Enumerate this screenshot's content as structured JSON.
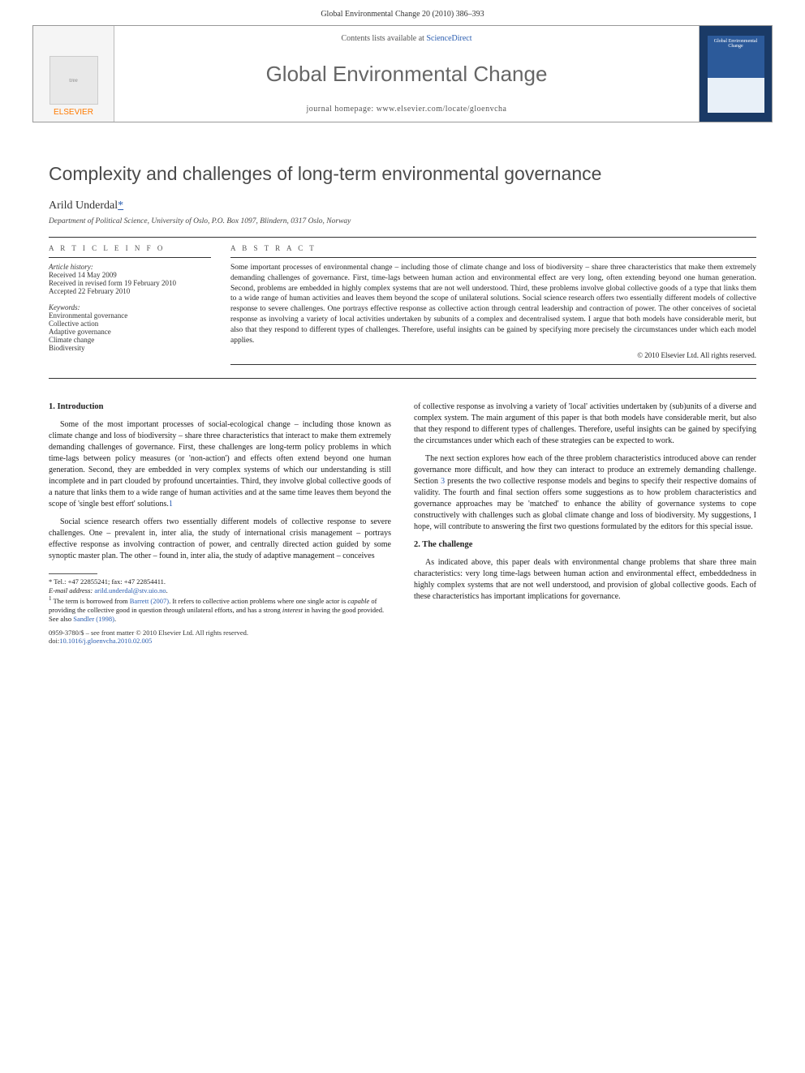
{
  "header": {
    "running": "Global Environmental Change 20 (2010) 386–393"
  },
  "banner": {
    "contents_prefix": "Contents lists available at ",
    "contents_link": "ScienceDirect",
    "journal": "Global Environmental Change",
    "homepage_prefix": "journal homepage: ",
    "homepage_url": "www.elsevier.com/locate/gloenvcha",
    "publisher": "ELSEVIER",
    "thumb_label": "Global Environmental Change"
  },
  "article": {
    "title": "Complexity and challenges of long-term environmental governance",
    "author": "Arild Underdal",
    "star": "*",
    "affiliation": "Department of Political Science, University of Oslo, P.O. Box 1097, Blindern, 0317 Oslo, Norway"
  },
  "info": {
    "heading": "A R T I C L E   I N F O",
    "history_label": "Article history:",
    "received": "Received 14 May 2009",
    "revised": "Received in revised form 19 February 2010",
    "accepted": "Accepted 22 February 2010",
    "keywords_label": "Keywords:",
    "keywords": [
      "Environmental governance",
      "Collective action",
      "Adaptive governance",
      "Climate change",
      "Biodiversity"
    ]
  },
  "abstract": {
    "heading": "A B S T R A C T",
    "text": "Some important processes of environmental change – including those of climate change and loss of biodiversity – share three characteristics that make them extremely demanding challenges of governance. First, time-lags between human action and environmental effect are very long, often extending beyond one human generation. Second, problems are embedded in highly complex systems that are not well understood. Third, these problems involve global collective goods of a type that links them to a wide range of human activities and leaves them beyond the scope of unilateral solutions. Social science research offers two essentially different models of collective response to severe challenges. One portrays effective response as collective action through central leadership and contraction of power. The other conceives of societal response as involving a variety of local activities undertaken by subunits of a complex and decentralised system. I argue that both models have considerable merit, but also that they respond to different types of challenges. Therefore, useful insights can be gained by specifying more precisely the circumstances under which each model applies.",
    "copyright": "© 2010 Elsevier Ltd. All rights reserved."
  },
  "body": {
    "s1_heading": "1. Introduction",
    "s1_p1": "Some of the most important processes of social-ecological change – including those known as climate change and loss of biodiversity – share three characteristics that interact to make them extremely demanding challenges of governance. First, these challenges are long-term policy problems in which time-lags between policy measures (or 'non-action') and effects often extend beyond one human generation. Second, they are embedded in very complex systems of which our understanding is still incomplete and in part clouded by profound uncertainties. Third, they involve global collective goods of a nature that links them to a wide range of human activities and at the same time leaves them beyond the scope of 'single best effort' solutions.",
    "s1_p1_fn": "1",
    "s1_p2": "Social science research offers two essentially different models of collective response to severe challenges. One – prevalent in, inter alia, the study of international crisis management – portrays effective response as involving contraction of power, and centrally directed action guided by some synoptic master plan. The other – found in, inter alia, the study of adaptive management – conceives",
    "s1_p3": "of collective response as involving a variety of 'local' activities undertaken by (sub)units of a diverse and complex system. The main argument of this paper is that both models have considerable merit, but also that they respond to different types of challenges. Therefore, useful insights can be gained by specifying the circumstances under which each of these strategies can be expected to work.",
    "s1_p4a": "The next section explores how each of the three problem characteristics introduced above can render governance more difficult, and how they can interact to produce an extremely demanding challenge. Section ",
    "s1_p4_link": "3",
    "s1_p4b": " presents the two collective response models and begins to specify their respective domains of validity. The fourth and final section offers some suggestions as to how problem characteristics and governance approaches may be 'matched' to enhance the ability of governance systems to cope constructively with challenges such as global climate change and loss of biodiversity. My suggestions, I hope, will contribute to answering the first two questions formulated by the editors for this special issue.",
    "s2_heading": "2. The challenge",
    "s2_p1": "As indicated above, this paper deals with environmental change problems that share three main characteristics: very long time-lags between human action and environmental effect, embeddedness in highly complex systems that are not well understood, and provision of global collective goods. Each of these characteristics has important implications for governance."
  },
  "footnotes": {
    "corr": "* Tel.: +47 22855241; fax: +47 22854411.",
    "email_label": "E-mail address: ",
    "email": "arild.underdal@stv.uio.no",
    "note1_num": "1",
    "note1a": " The term is borrowed from ",
    "note1_cite1": "Barrett (2007)",
    "note1b": ". It refers to collective action problems where one single actor is ",
    "note1_em": "capable",
    "note1c": " of providing the collective good in question through unilateral efforts, and has a strong ",
    "note1_em2": "interest",
    "note1d": " in having the good provided. See also ",
    "note1_cite2": "Sandler (1998)",
    "note1e": "."
  },
  "footer": {
    "line1": "0959-3780/$ – see front matter © 2010 Elsevier Ltd. All rights reserved.",
    "doi_label": "doi:",
    "doi": "10.1016/j.gloenvcha.2010.02.005"
  },
  "colors": {
    "link": "#2a5db0",
    "orange": "#ff7a00",
    "heading_gray": "#4a4a4a",
    "banner_right": "#1a3a66"
  }
}
